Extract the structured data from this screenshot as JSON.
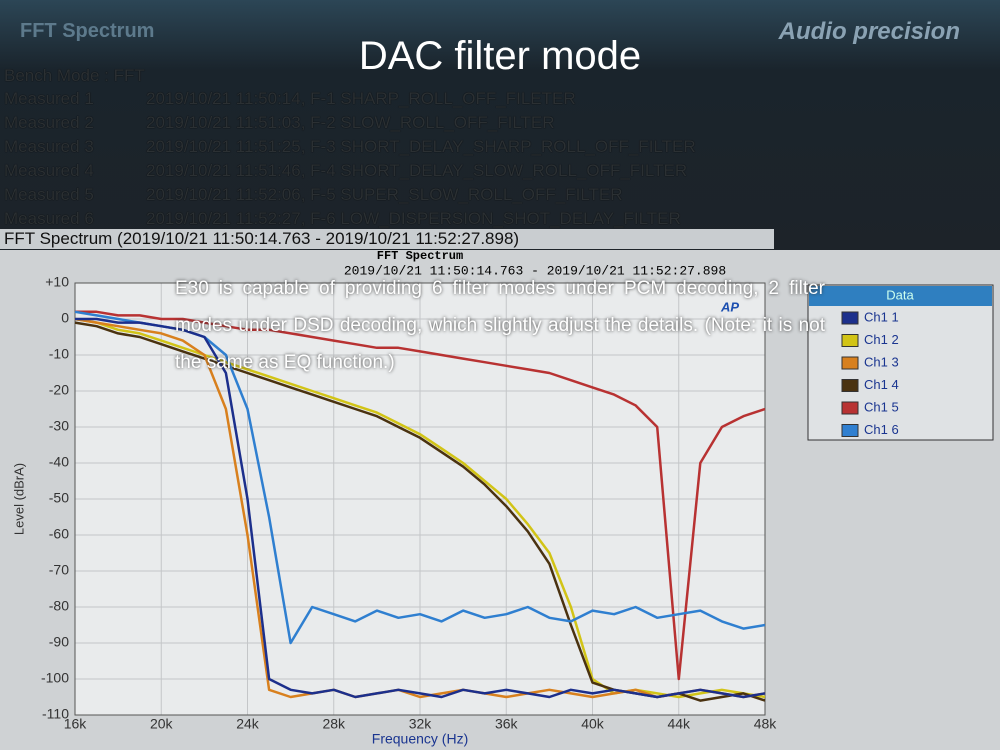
{
  "slide": {
    "header": "FFT Spectrum",
    "logo": "Audio precision",
    "title": "DAC filter mode",
    "bench": "Bench Mode : FFT",
    "measured": [
      [
        "Measured 1",
        "2019/10/21 11:50:14, F-1 SHARP_ROLL_OFF_FILETER"
      ],
      [
        "Measured 2",
        "2019/10/21 11:51:03, F-2 SLOW_ROLL_OFF_FILTER"
      ],
      [
        "Measured 3",
        "2019/10/21 11:51:25, F-3 SHORT_DELAY_SHARP_ROLL_OFF_FILTER"
      ],
      [
        "Measured 4",
        "2019/10/21 11:51:46, F-4 SHORT_DELAY_SLOW_ROLL_OFF_FILTER"
      ],
      [
        "Measured 5",
        "2019/10/21 11:52:06, F-5 SUPER_SLOW_ROLL_OFF_FILTER"
      ],
      [
        "Measured 6",
        "2019/10/21 11:52:27, F-6 LOW_DISPERSION_SHOT_DELAY_FILTER"
      ]
    ],
    "section": "FFT Spectrum (2019/10/21 11:50:14.763 - 2019/10/21 11:52:27.898)",
    "note": "E30 is capable of providing 6 filter modes under PCM decoding, 2 filter modes under DSD decoding, which slightly adjust the details. (Note: it is not the same as EQ function.)"
  },
  "chart_data": {
    "type": "line",
    "title": "FFT Spectrum",
    "subtitle": "2019/10/21 11:50:14.763 - 2019/10/21 11:52:27.898",
    "logo": "AP",
    "x_label": "Frequency (Hz)",
    "y_label": "Level (dBrA)",
    "legend_title": "Data",
    "legend": "right",
    "grid": true,
    "x": [
      16000,
      17000,
      18000,
      19000,
      20000,
      21000,
      22000,
      23000,
      24000,
      25000,
      26000,
      27000,
      28000,
      29000,
      30000,
      31000,
      32000,
      33000,
      34000,
      35000,
      36000,
      37000,
      38000,
      39000,
      40000,
      41000,
      42000,
      43000,
      44000,
      45000,
      46000,
      47000,
      48000
    ],
    "xlim": [
      16000,
      48000
    ],
    "xticks": [
      {
        "value": 16000,
        "label": "16k"
      },
      {
        "value": 20000,
        "label": "20k"
      },
      {
        "value": 24000,
        "label": "24k"
      },
      {
        "value": 28000,
        "label": "28k"
      },
      {
        "value": 32000,
        "label": "32k"
      },
      {
        "value": 36000,
        "label": "36k"
      },
      {
        "value": 40000,
        "label": "40k"
      },
      {
        "value": 44000,
        "label": "44k"
      },
      {
        "value": 48000,
        "label": "48k"
      }
    ],
    "ylim": [
      -110,
      10
    ],
    "yticks": [
      -110,
      -100,
      -90,
      -80,
      -70,
      -60,
      -50,
      -40,
      -30,
      -20,
      -10,
      0,
      {
        "value": 10,
        "label": "+10"
      }
    ],
    "series": [
      {
        "name": "Ch1 1",
        "color": "#1c2f8c",
        "values": [
          0,
          0,
          -1,
          -1,
          -2,
          -3,
          -5,
          -15,
          -50,
          -100,
          -103,
          -104,
          -103,
          -105,
          -104,
          -103,
          -104,
          -105,
          -103,
          -104,
          -103,
          -104,
          -105,
          -103,
          -104,
          -103,
          -104,
          -105,
          -104,
          -103,
          -104,
          -105,
          -104
        ]
      },
      {
        "name": "Ch1 2",
        "color": "#d2c416",
        "values": [
          0,
          -1,
          -3,
          -4,
          -6,
          -8,
          -10,
          -12,
          -14,
          -16,
          -18,
          -20,
          -22,
          -24,
          -26,
          -29,
          -32,
          -36,
          -40,
          -45,
          -50,
          -57,
          -65,
          -80,
          -100,
          -104,
          -103,
          -104,
          -105,
          -104,
          -103,
          -104,
          -105
        ]
      },
      {
        "name": "Ch1 3",
        "color": "#d8801e",
        "values": [
          0,
          -1,
          -2,
          -3,
          -4,
          -6,
          -10,
          -25,
          -60,
          -103,
          -105,
          -104,
          -103,
          -105,
          -104,
          -103,
          -105,
          -104,
          -103,
          -104,
          -105,
          -104,
          -103,
          -104,
          -105,
          -104,
          -103,
          -105,
          -104,
          -103,
          -104,
          -105,
          -104
        ]
      },
      {
        "name": "Ch1 4",
        "color": "#4a3210",
        "values": [
          -1,
          -2,
          -4,
          -5,
          -7,
          -9,
          -11,
          -13,
          -15,
          -17,
          -19,
          -21,
          -23,
          -25,
          -27,
          -30,
          -33,
          -37,
          -41,
          -46,
          -52,
          -59,
          -68,
          -85,
          -101,
          -103,
          -104,
          -105,
          -104,
          -106,
          -105,
          -104,
          -106
        ]
      },
      {
        "name": "Ch1 5",
        "color": "#b83232",
        "values": [
          2,
          2,
          1,
          1,
          0,
          0,
          -1,
          -2,
          -3,
          -3,
          -4,
          -5,
          -6,
          -7,
          -8,
          -8,
          -9,
          -10,
          -11,
          -12,
          -13,
          -14,
          -15,
          -17,
          -19,
          -21,
          -24,
          -30,
          -100,
          -40,
          -30,
          -27,
          -25
        ]
      },
      {
        "name": "Ch1 6",
        "color": "#2f7fd0",
        "values": [
          2,
          1,
          0,
          -1,
          -2,
          -3,
          -5,
          -10,
          -25,
          -55,
          -90,
          -80,
          -82,
          -84,
          -81,
          -83,
          -82,
          -84,
          -81,
          -83,
          -82,
          -80,
          -83,
          -84,
          -81,
          -82,
          -80,
          -83,
          -82,
          -81,
          -84,
          -86,
          -85
        ]
      }
    ]
  }
}
